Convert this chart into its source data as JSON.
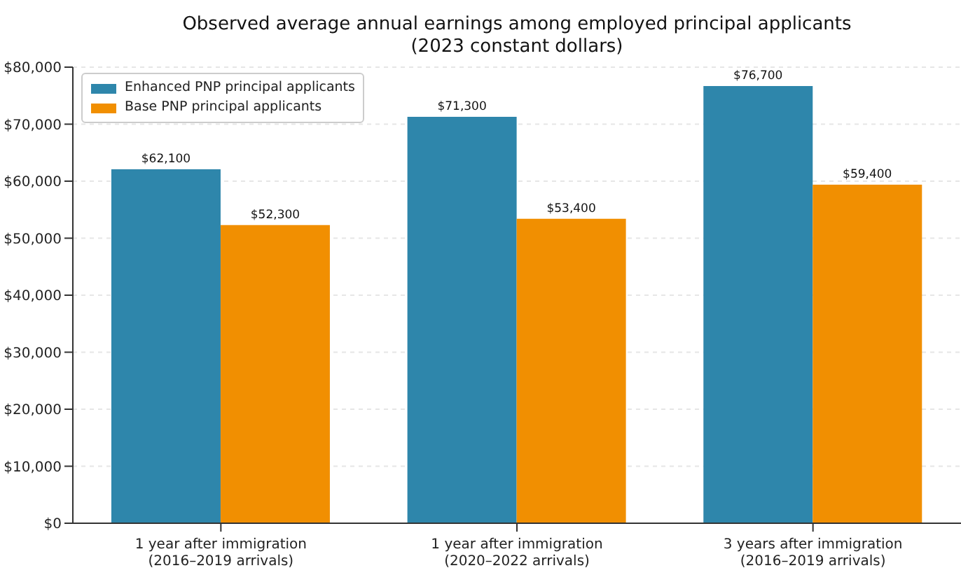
{
  "chart_data": {
    "type": "bar",
    "title": "Observed average annual earnings among employed principal applicants",
    "subtitle": "(2023 constant dollars)",
    "categories": [
      "1 year after immigration\n(2016–2019 arrivals)",
      "1 year after immigration\n(2020–2022 arrivals)",
      "3 years after immigration\n(2016–2019 arrivals)"
    ],
    "series": [
      {
        "name": "Enhanced PNP principal applicants",
        "color": "#2e86ab",
        "values": [
          62100,
          71300,
          76700
        ],
        "value_labels": [
          "$62,100",
          "$71,300",
          "$76,700"
        ]
      },
      {
        "name": "Base PNP principal applicants",
        "color": "#f18f01",
        "values": [
          52300,
          53400,
          59400
        ],
        "value_labels": [
          "$52,300",
          "$53,400",
          "$59,400"
        ]
      }
    ],
    "ylim": [
      0,
      80000
    ],
    "yticks": [
      {
        "value": 0,
        "label": "$0"
      },
      {
        "value": 10000,
        "label": "$10,000"
      },
      {
        "value": 20000,
        "label": "$20,000"
      },
      {
        "value": 30000,
        "label": "$30,000"
      },
      {
        "value": 40000,
        "label": "$40,000"
      },
      {
        "value": 50000,
        "label": "$50,000"
      },
      {
        "value": 60000,
        "label": "$60,000"
      },
      {
        "value": 70000,
        "label": "$70,000"
      },
      {
        "value": 80000,
        "label": "$80,000"
      }
    ],
    "grid": "y",
    "legend": "top left"
  }
}
